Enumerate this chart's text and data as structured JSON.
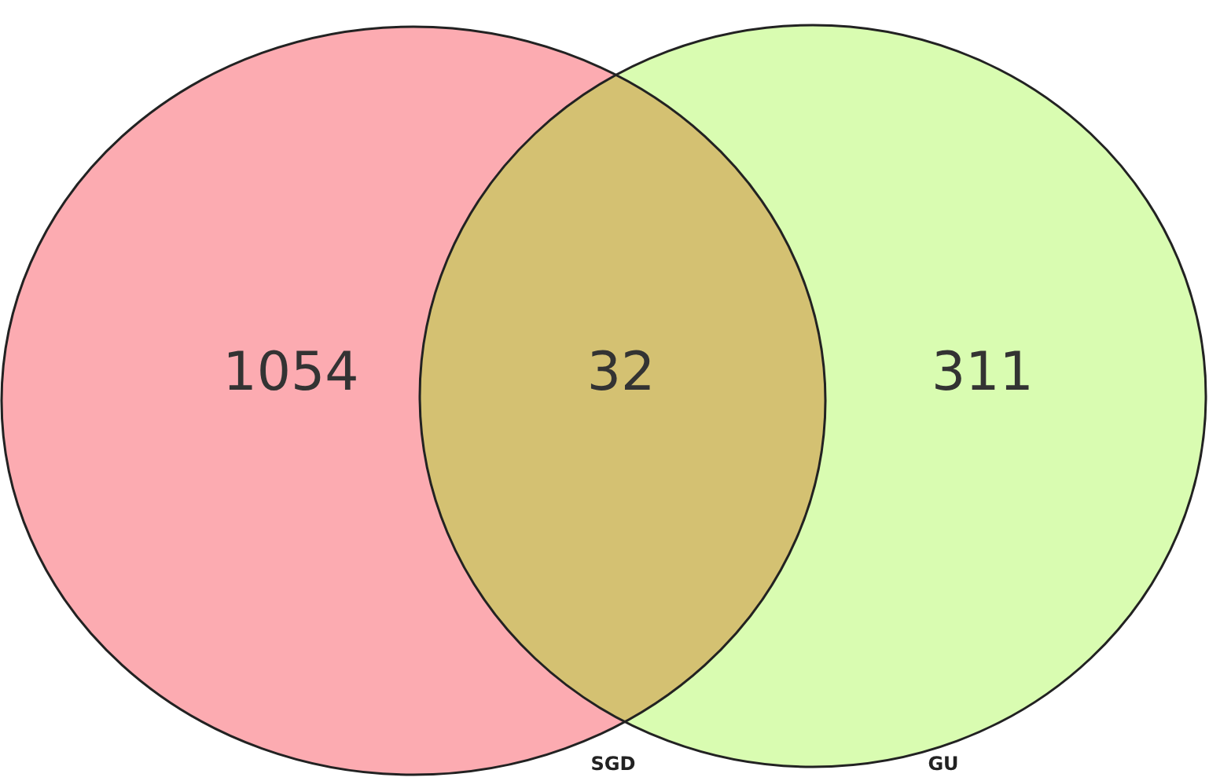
{
  "chart_data": {
    "type": "other",
    "categories": [
      null,
      null,
      null
    ],
    "values": [
      1054,
      32,
      311
    ],
    "colors": [
      "#fcabb1",
      "#d4c172",
      "#d9fcb1"
    ],
    "data_labels": true,
    "annotations": [
      "SGD",
      "GU"
    ]
  }
}
